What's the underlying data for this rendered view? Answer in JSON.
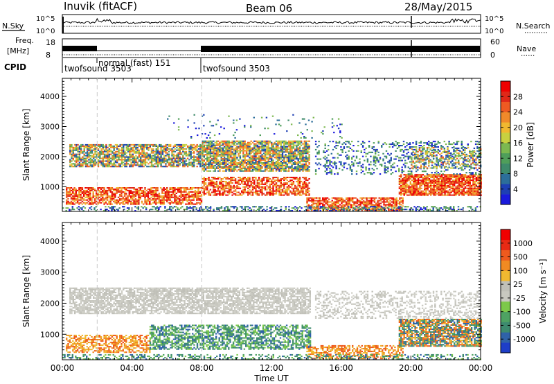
{
  "header": {
    "station": "Inuvik (fitACF)",
    "beam": "Beam 06",
    "date": "28/May/2015"
  },
  "noise_panel": {
    "left_label": "N.Sky",
    "right_label": "N.Search",
    "left_ticks": [
      "10^5",
      "10^0"
    ],
    "right_ticks": [
      "10^5",
      "10^0"
    ]
  },
  "freq_panel": {
    "label_line1": "Freq.",
    "label_line2": "[MHz]",
    "left_ticks": [
      "18",
      "8"
    ],
    "right_ticks": [
      "60",
      "0"
    ],
    "right_label": "Nave"
  },
  "cpid": {
    "label": "CPID",
    "segments": [
      {
        "text": "twofsound 3503",
        "start_hour": 0
      },
      {
        "text": "normal (fast) 151",
        "start_hour": 2
      },
      {
        "text": "twofsound 3503",
        "start_hour": 8
      }
    ]
  },
  "chart_data": [
    {
      "type": "heatmap",
      "quantity": "Power",
      "ylabel": "Slant Range [km]",
      "ylim": [
        180,
        4600
      ],
      "yticks": [
        "1000",
        "2000",
        "3000",
        "4000"
      ],
      "xlim": [
        0,
        24
      ],
      "xticks": [
        "00:00",
        "04:00",
        "08:00",
        "12:00",
        "16:00",
        "20:00",
        "00:00"
      ],
      "colorbar": {
        "label": "Power [dB]",
        "ticks": [
          "4",
          "8",
          "12",
          "16",
          "20",
          "24",
          "28"
        ],
        "colors": [
          "#1a1adc",
          "#1e3fb4",
          "#2c6e9a",
          "#3e8a6a",
          "#4f9e5a",
          "#7cb850",
          "#c8d040",
          "#f0b830",
          "#f08a2a",
          "#ee5a22",
          "#e02818",
          "#f00000"
        ]
      }
    },
    {
      "type": "heatmap",
      "quantity": "Velocity",
      "ylabel": "Slant Range [km]",
      "ylim": [
        180,
        4600
      ],
      "yticks": [
        "1000",
        "2000",
        "3000",
        "4000"
      ],
      "xlim": [
        0,
        24
      ],
      "xticks": [
        "00:00",
        "04:00",
        "08:00",
        "12:00",
        "16:00",
        "20:00",
        "00:00"
      ],
      "xlabel": "Time UT",
      "colorbar": {
        "label": "Velocity [m s⁻¹]",
        "ticks": [
          "1000",
          "500",
          "100",
          "25",
          "-25",
          "-100",
          "-500",
          "-1000"
        ],
        "colors": [
          "#1e3ec8",
          "#2f62a8",
          "#3d8a6e",
          "#4ea262",
          "#7cc84a",
          "#c8c8c0",
          "#c0c0b8",
          "#f0b830",
          "#f08a22",
          "#ee5a1e",
          "#e82a14",
          "#f00000"
        ]
      }
    }
  ]
}
